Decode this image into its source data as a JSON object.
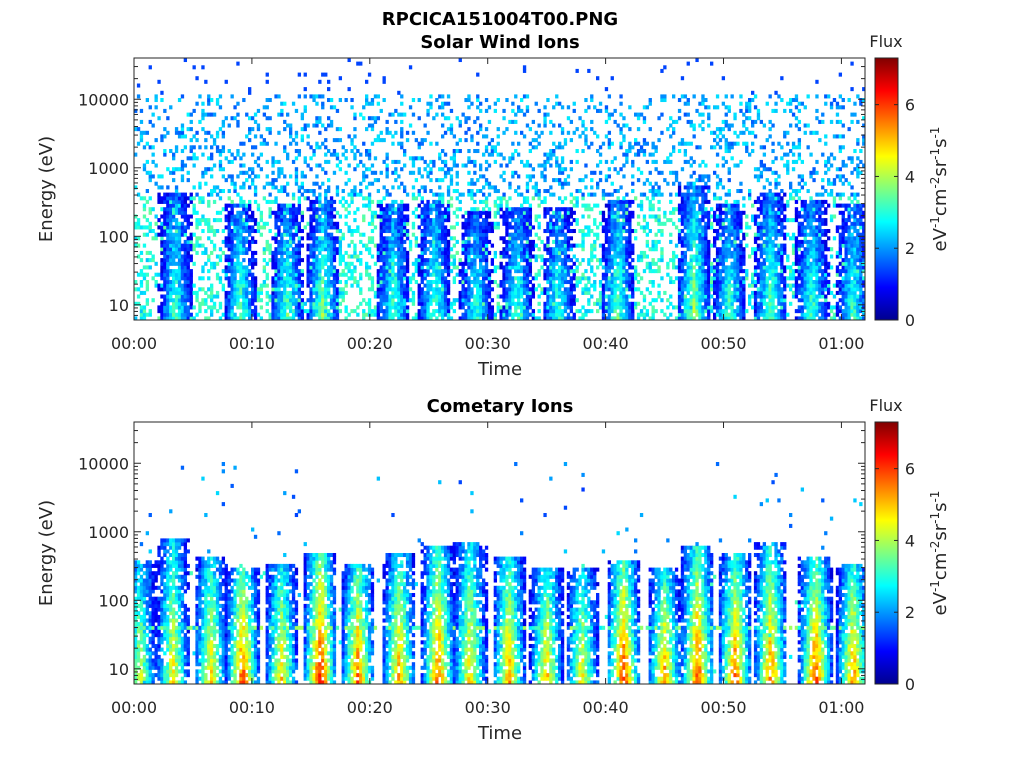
{
  "figure_title": "RPCICA151004T00.PNG",
  "colorbar": {
    "label": "Flux",
    "unit_parts": [
      "eV",
      "-1",
      "cm",
      "-2",
      "sr",
      "-1",
      "s",
      "-1"
    ],
    "range": [
      0,
      7.3
    ],
    "ticks": [
      "0",
      "2",
      "4",
      "6"
    ],
    "colormap": "jet"
  },
  "chart_data": [
    {
      "type": "heatmap",
      "title": "Solar Wind Ions",
      "xlabel": "Time",
      "ylabel": "Energy (eV)",
      "ylog": true,
      "ylim": [
        6,
        40000
      ],
      "xlim_minutes": [
        0,
        62
      ],
      "x_tick_labels": [
        "00:00",
        "00:10",
        "00:20",
        "00:30",
        "00:40",
        "00:50",
        "01:00"
      ],
      "y_tick_labels": [
        "10",
        "100",
        "1000",
        "10000"
      ],
      "flux_range": [
        0,
        7.3
      ],
      "scatter_energy_max": 12000,
      "scatter_flux": 1.5,
      "bursts": [
        {
          "t": 3.5,
          "emax": 450,
          "peak": 3.2
        },
        {
          "t": 9.0,
          "emax": 300,
          "peak": 3.4
        },
        {
          "t": 13.0,
          "emax": 300,
          "peak": 3.3
        },
        {
          "t": 16.0,
          "emax": 380,
          "peak": 3.6
        },
        {
          "t": 22.0,
          "emax": 300,
          "peak": 3.2
        },
        {
          "t": 25.5,
          "emax": 350,
          "peak": 3.3
        },
        {
          "t": 29.0,
          "emax": 250,
          "peak": 3.0
        },
        {
          "t": 32.5,
          "emax": 280,
          "peak": 3.1
        },
        {
          "t": 36.0,
          "emax": 280,
          "peak": 3.1
        },
        {
          "t": 41.0,
          "emax": 350,
          "peak": 3.4
        },
        {
          "t": 47.5,
          "emax": 550,
          "peak": 3.8
        },
        {
          "t": 50.5,
          "emax": 300,
          "peak": 3.2
        },
        {
          "t": 54.0,
          "emax": 450,
          "peak": 3.5
        },
        {
          "t": 57.5,
          "emax": 350,
          "peak": 3.3
        },
        {
          "t": 61.0,
          "emax": 300,
          "peak": 3.2
        }
      ]
    },
    {
      "type": "heatmap",
      "title": "Cometary Ions",
      "xlabel": "Time",
      "ylabel": "Energy (eV)",
      "ylog": true,
      "ylim": [
        6,
        40000
      ],
      "xlim_minutes": [
        0,
        62
      ],
      "x_tick_labels": [
        "00:00",
        "00:10",
        "00:20",
        "00:30",
        "00:40",
        "00:50",
        "01:00"
      ],
      "y_tick_labels": [
        "10",
        "100",
        "1000",
        "10000"
      ],
      "flux_range": [
        0,
        7.3
      ],
      "scatter_energy_max": 10000,
      "scatter_flux": 1.3,
      "band_energy": 40,
      "bursts": [
        {
          "t": 0.5,
          "emax": 400,
          "peak": 4.2
        },
        {
          "t": 3.3,
          "emax": 800,
          "peak": 4.6
        },
        {
          "t": 6.5,
          "emax": 450,
          "peak": 4.8
        },
        {
          "t": 9.2,
          "emax": 300,
          "peak": 5.8
        },
        {
          "t": 12.5,
          "emax": 350,
          "peak": 4.8
        },
        {
          "t": 15.8,
          "emax": 500,
          "peak": 6.2
        },
        {
          "t": 19.0,
          "emax": 350,
          "peak": 5.6
        },
        {
          "t": 22.5,
          "emax": 500,
          "peak": 5.2
        },
        {
          "t": 25.8,
          "emax": 600,
          "peak": 5.6
        },
        {
          "t": 28.5,
          "emax": 700,
          "peak": 4.8
        },
        {
          "t": 31.8,
          "emax": 450,
          "peak": 5.2
        },
        {
          "t": 35.0,
          "emax": 300,
          "peak": 5.0
        },
        {
          "t": 38.0,
          "emax": 300,
          "peak": 4.6
        },
        {
          "t": 41.5,
          "emax": 400,
          "peak": 6.0
        },
        {
          "t": 45.0,
          "emax": 300,
          "peak": 5.2
        },
        {
          "t": 47.8,
          "emax": 600,
          "peak": 5.8
        },
        {
          "t": 51.0,
          "emax": 500,
          "peak": 5.6
        },
        {
          "t": 54.0,
          "emax": 700,
          "peak": 5.4
        },
        {
          "t": 57.8,
          "emax": 450,
          "peak": 5.8
        },
        {
          "t": 61.0,
          "emax": 350,
          "peak": 5.4
        }
      ]
    }
  ]
}
